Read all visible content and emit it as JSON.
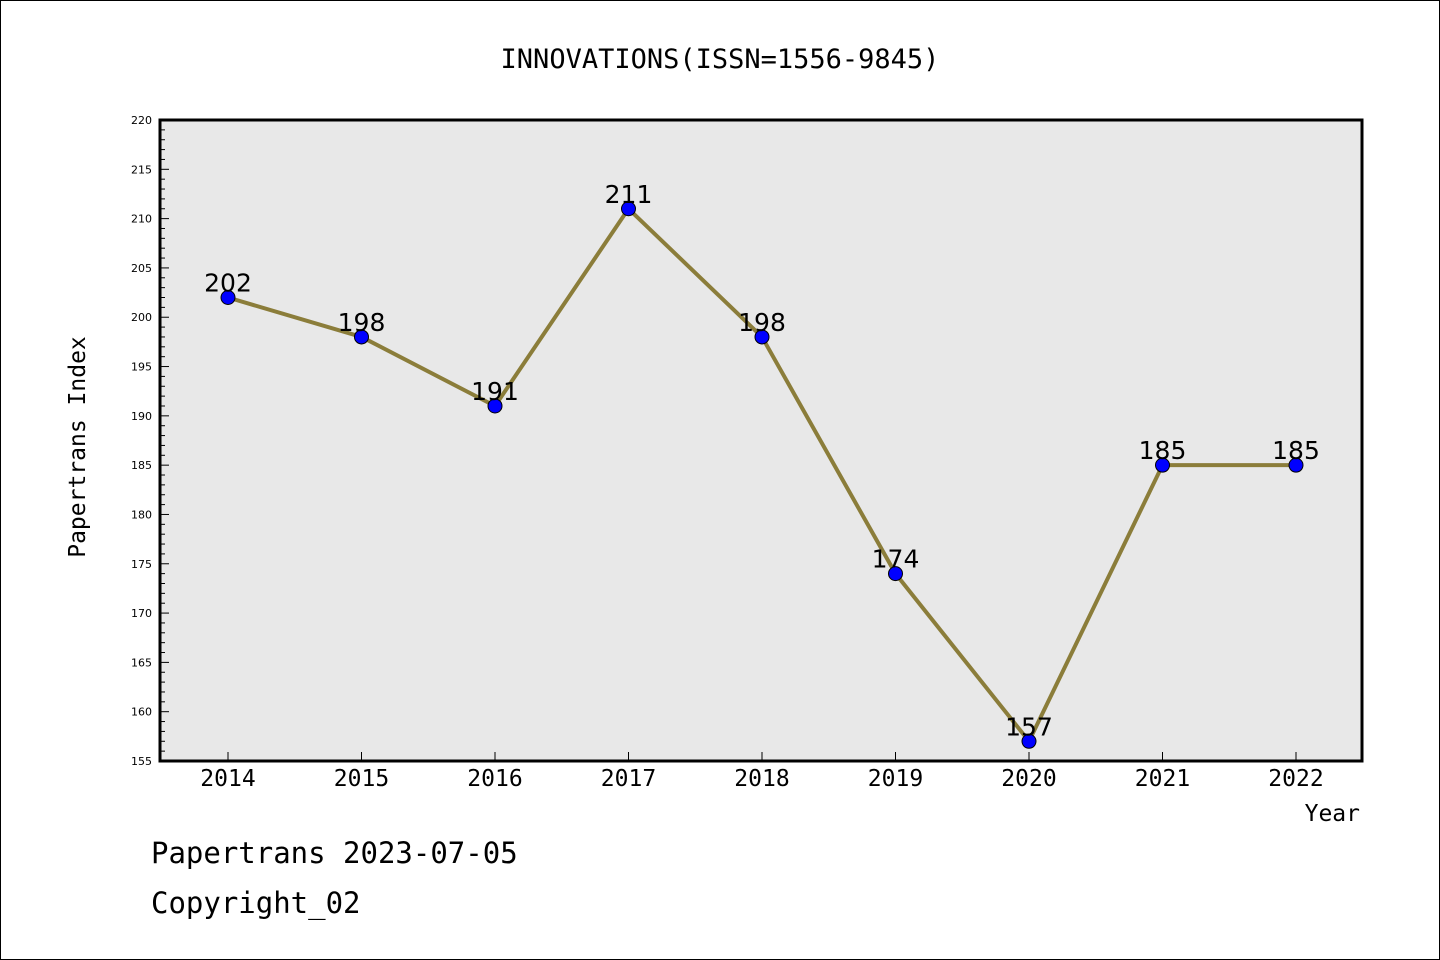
{
  "chart_data": {
    "type": "line",
    "title": "INNOVATIONS(ISSN=1556-9845)",
    "xlabel": "Year",
    "ylabel": "Papertrans Index",
    "categories": [
      "2014",
      "2015",
      "2016",
      "2017",
      "2018",
      "2019",
      "2020",
      "2021",
      "2022"
    ],
    "values": [
      202,
      198,
      191,
      211,
      198,
      174,
      157,
      185,
      185
    ],
    "ylim": [
      155,
      220
    ],
    "yticks": [
      155,
      160,
      165,
      170,
      175,
      180,
      185,
      190,
      195,
      200,
      205,
      210,
      215,
      220
    ],
    "grid": false,
    "line_color": "#8B7D3A",
    "marker_color": "#0000FF",
    "plot_background": "#E8E8E8"
  },
  "footer": {
    "line1": "Papertrans 2023-07-05",
    "line2": "Copyright_02"
  }
}
